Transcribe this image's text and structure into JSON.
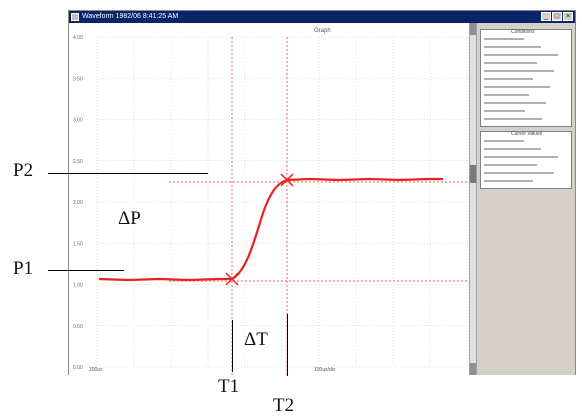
{
  "window": {
    "title": "Waveform  1982/06  8:41:25 AM",
    "plot_title": "Graph"
  },
  "y_ticks": [
    "4.00",
    "3.50",
    "3.00",
    "2.50",
    "2.00",
    "1.50",
    "1.00",
    "0.50",
    "0.00"
  ],
  "x_labels": {
    "left": "200us",
    "right": "100us/div"
  },
  "side_panel": {
    "conditions_title": "Conditions",
    "cursor_title": "Cursor Values"
  },
  "annotations": {
    "p2": "P2",
    "p1": "P1",
    "delta_p": "ΔP",
    "delta_t": "ΔT",
    "t1": "T1",
    "t2": "T2"
  },
  "colors": {
    "trace": "#e8231c",
    "cursor": "#ff7a7a",
    "grid": "#c8c8c8",
    "titlebar": "#0a246a"
  },
  "icons": {
    "marker": "x-marker-icon"
  }
}
